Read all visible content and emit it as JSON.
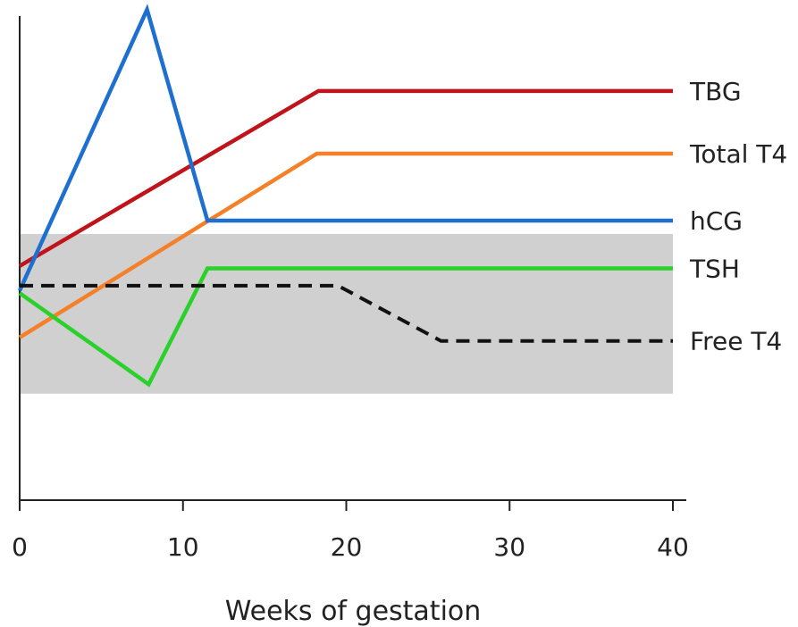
{
  "chart_data": {
    "type": "line",
    "title": "",
    "xlabel": "Weeks of gestation",
    "ylabel": "",
    "xlim": [
      0,
      40
    ],
    "ylim": [
      0,
      100
    ],
    "x_ticks": [
      0,
      10,
      20,
      30,
      40
    ],
    "x_tick_labels": [
      "0",
      "10",
      "20",
      "30",
      "40"
    ],
    "grid": false,
    "legend": "labels at line ends (right)",
    "reference_band": {
      "y_low": 21.6,
      "y_high": 54.0,
      "color": "#d0d0d0"
    },
    "series": [
      {
        "name": "TBG",
        "color": "#c0141c",
        "dashed": false,
        "points": [
          [
            0,
            47.5
          ],
          [
            18.3,
            83.0
          ],
          [
            40,
            83.0
          ]
        ]
      },
      {
        "name": "Total T4",
        "color": "#f5802a",
        "dashed": false,
        "points": [
          [
            0,
            33.0
          ],
          [
            18.2,
            70.3
          ],
          [
            40,
            70.3
          ]
        ]
      },
      {
        "name": "hCG",
        "color": "#1e6fd0",
        "dashed": false,
        "points": [
          [
            0,
            42.5
          ],
          [
            7.8,
            99.5
          ],
          [
            11.5,
            56.7
          ],
          [
            40,
            56.7
          ]
        ]
      },
      {
        "name": "TSH",
        "color": "#2bd12b",
        "dashed": false,
        "points": [
          [
            0,
            42.0
          ],
          [
            7.9,
            23.5
          ],
          [
            11.5,
            47.0
          ],
          [
            40,
            47.0
          ]
        ]
      },
      {
        "name": "Free T4",
        "color": "#111111",
        "dashed": true,
        "points": [
          [
            0,
            43.5
          ],
          [
            19.5,
            43.5
          ],
          [
            25.8,
            32.3
          ],
          [
            40,
            32.3
          ]
        ]
      }
    ]
  }
}
